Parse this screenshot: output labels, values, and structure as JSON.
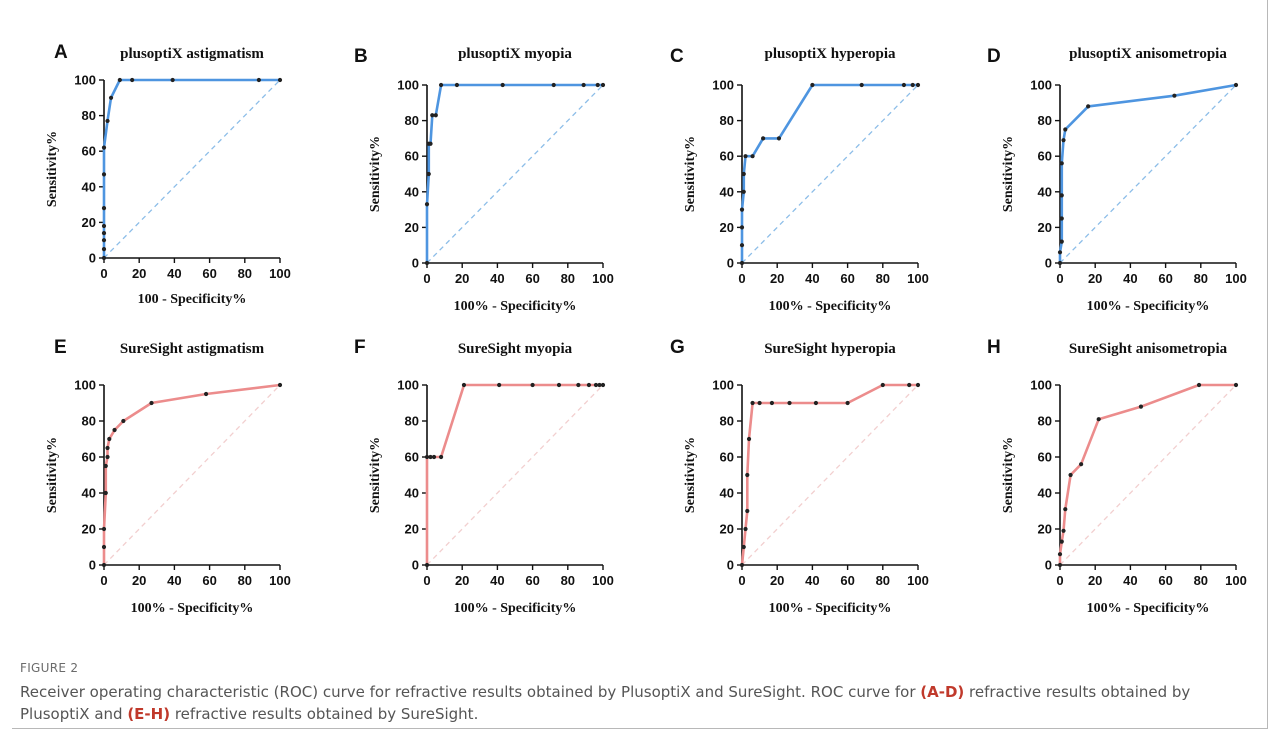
{
  "figure_label": "FIGURE 2",
  "caption": {
    "p1": "Receiver operating characteristic (ROC) curve for refractive results obtained by PlusoptiX and SureSight. ROC curve for ",
    "b1": "(A-D)",
    "p2": " refractive results obtained by PlusoptiX and ",
    "b2": "(E-H)",
    "p3": " refractive results obtained by SureSight."
  },
  "colors": {
    "blue": "#4e95e0",
    "red": "#ec8c8c",
    "blue_diag": "#8cbde8",
    "red_diag": "#f2cfcf",
    "point": "#222222"
  },
  "chart_data": [
    {
      "letter": "A",
      "type": "line",
      "title": "plusoptiX astigmatism",
      "xlabel": "100 - Specificity%",
      "ylabel": "Sensitivity%",
      "xlim": [
        0,
        100
      ],
      "ylim": [
        0,
        100
      ],
      "xticks": [
        0,
        20,
        40,
        60,
        80,
        100
      ],
      "yticks": [
        0,
        20,
        40,
        60,
        80,
        100
      ],
      "color": "blue",
      "diagonal": true,
      "points": [
        [
          0,
          0
        ],
        [
          0,
          5
        ],
        [
          0,
          10
        ],
        [
          0,
          14
        ],
        [
          0,
          18
        ],
        [
          0,
          28
        ],
        [
          0,
          47
        ],
        [
          0,
          62
        ],
        [
          2,
          77
        ],
        [
          4,
          90
        ],
        [
          9,
          100
        ],
        [
          16,
          100
        ],
        [
          39,
          100
        ],
        [
          88,
          100
        ],
        [
          100,
          100
        ]
      ]
    },
    {
      "letter": "B",
      "type": "line",
      "title": "plusoptiX myopia",
      "xlabel": "100% - Specificity%",
      "ylabel": "Sensitivity%",
      "xlim": [
        0,
        100
      ],
      "ylim": [
        0,
        100
      ],
      "xticks": [
        0,
        20,
        40,
        60,
        80,
        100
      ],
      "yticks": [
        0,
        20,
        40,
        60,
        80,
        100
      ],
      "color": "blue",
      "diagonal": true,
      "points": [
        [
          0,
          0
        ],
        [
          0,
          33
        ],
        [
          1,
          50
        ],
        [
          1,
          67
        ],
        [
          2,
          67
        ],
        [
          3,
          83
        ],
        [
          5,
          83
        ],
        [
          8,
          100
        ],
        [
          17,
          100
        ],
        [
          43,
          100
        ],
        [
          72,
          100
        ],
        [
          89,
          100
        ],
        [
          97,
          100
        ],
        [
          100,
          100
        ]
      ]
    },
    {
      "letter": "C",
      "type": "line",
      "title": "plusoptiX hyperopia",
      "xlabel": "100% - Specificity%",
      "ylabel": "Sensitivity%",
      "xlim": [
        0,
        100
      ],
      "ylim": [
        0,
        100
      ],
      "xticks": [
        0,
        20,
        40,
        60,
        80,
        100
      ],
      "yticks": [
        0,
        20,
        40,
        60,
        80,
        100
      ],
      "color": "blue",
      "diagonal": true,
      "points": [
        [
          0,
          0
        ],
        [
          0,
          10
        ],
        [
          0,
          20
        ],
        [
          0,
          30
        ],
        [
          1,
          40
        ],
        [
          1,
          50
        ],
        [
          2,
          60
        ],
        [
          6,
          60
        ],
        [
          12,
          70
        ],
        [
          21,
          70
        ],
        [
          40,
          100
        ],
        [
          68,
          100
        ],
        [
          92,
          100
        ],
        [
          97,
          100
        ],
        [
          100,
          100
        ]
      ]
    },
    {
      "letter": "D",
      "type": "line",
      "title": "plusoptiX anisometropia",
      "xlabel": "100% - Specificity%",
      "ylabel": "Sensitivity%",
      "xlim": [
        0,
        100
      ],
      "ylim": [
        0,
        100
      ],
      "xticks": [
        0,
        20,
        40,
        60,
        80,
        100
      ],
      "yticks": [
        0,
        20,
        40,
        60,
        80,
        100
      ],
      "color": "blue",
      "diagonal": true,
      "points": [
        [
          0,
          0
        ],
        [
          0,
          6
        ],
        [
          1,
          12
        ],
        [
          1,
          25
        ],
        [
          1,
          38
        ],
        [
          1,
          56
        ],
        [
          2,
          69
        ],
        [
          3,
          75
        ],
        [
          16,
          88
        ],
        [
          65,
          94
        ],
        [
          100,
          100
        ]
      ]
    },
    {
      "letter": "E",
      "type": "line",
      "title": "SureSight astigmatism",
      "xlabel": "100% - Specificity%",
      "ylabel": "Sensitivity%",
      "xlim": [
        0,
        100
      ],
      "ylim": [
        0,
        100
      ],
      "xticks": [
        0,
        20,
        40,
        60,
        80,
        100
      ],
      "yticks": [
        0,
        20,
        40,
        60,
        80,
        100
      ],
      "color": "red",
      "diagonal": true,
      "points": [
        [
          0,
          0
        ],
        [
          0,
          10
        ],
        [
          0,
          20
        ],
        [
          1,
          40
        ],
        [
          1,
          55
        ],
        [
          2,
          60
        ],
        [
          2,
          65
        ],
        [
          3,
          70
        ],
        [
          6,
          75
        ],
        [
          11,
          80
        ],
        [
          27,
          90
        ],
        [
          58,
          95
        ],
        [
          100,
          100
        ]
      ]
    },
    {
      "letter": "F",
      "type": "line",
      "title": "SureSight myopia",
      "xlabel": "100% - Specificity%",
      "ylabel": "Sensitivity%",
      "xlim": [
        0,
        100
      ],
      "ylim": [
        0,
        100
      ],
      "xticks": [
        0,
        20,
        40,
        60,
        80,
        100
      ],
      "yticks": [
        0,
        20,
        40,
        60,
        80,
        100
      ],
      "color": "red",
      "diagonal": true,
      "points": [
        [
          0,
          0
        ],
        [
          0,
          60
        ],
        [
          2,
          60
        ],
        [
          4,
          60
        ],
        [
          8,
          60
        ],
        [
          21,
          100
        ],
        [
          41,
          100
        ],
        [
          60,
          100
        ],
        [
          75,
          100
        ],
        [
          86,
          100
        ],
        [
          92,
          100
        ],
        [
          96,
          100
        ],
        [
          98,
          100
        ],
        [
          100,
          100
        ]
      ]
    },
    {
      "letter": "G",
      "type": "line",
      "title": "SureSight hyperopia",
      "xlabel": "100% - Specificity%",
      "ylabel": "Sensitivity%",
      "xlim": [
        0,
        100
      ],
      "ylim": [
        0,
        100
      ],
      "xticks": [
        0,
        20,
        40,
        60,
        80,
        100
      ],
      "yticks": [
        0,
        20,
        40,
        60,
        80,
        100
      ],
      "color": "red",
      "diagonal": true,
      "points": [
        [
          0,
          0
        ],
        [
          1,
          10
        ],
        [
          2,
          20
        ],
        [
          3,
          30
        ],
        [
          3,
          50
        ],
        [
          4,
          70
        ],
        [
          6,
          90
        ],
        [
          10,
          90
        ],
        [
          17,
          90
        ],
        [
          27,
          90
        ],
        [
          42,
          90
        ],
        [
          60,
          90
        ],
        [
          80,
          100
        ],
        [
          95,
          100
        ],
        [
          100,
          100
        ]
      ]
    },
    {
      "letter": "H",
      "type": "line",
      "title": "SureSight anisometropia",
      "xlabel": "100% - Specificity%",
      "ylabel": "Sensitivity%",
      "xlim": [
        0,
        100
      ],
      "ylim": [
        0,
        100
      ],
      "xticks": [
        0,
        20,
        40,
        60,
        80,
        100
      ],
      "yticks": [
        0,
        20,
        40,
        60,
        80,
        100
      ],
      "color": "red",
      "diagonal": true,
      "points": [
        [
          0,
          0
        ],
        [
          0,
          6
        ],
        [
          1,
          13
        ],
        [
          2,
          19
        ],
        [
          3,
          31
        ],
        [
          6,
          50
        ],
        [
          12,
          56
        ],
        [
          22,
          81
        ],
        [
          46,
          88
        ],
        [
          79,
          100
        ],
        [
          100,
          100
        ]
      ]
    }
  ]
}
